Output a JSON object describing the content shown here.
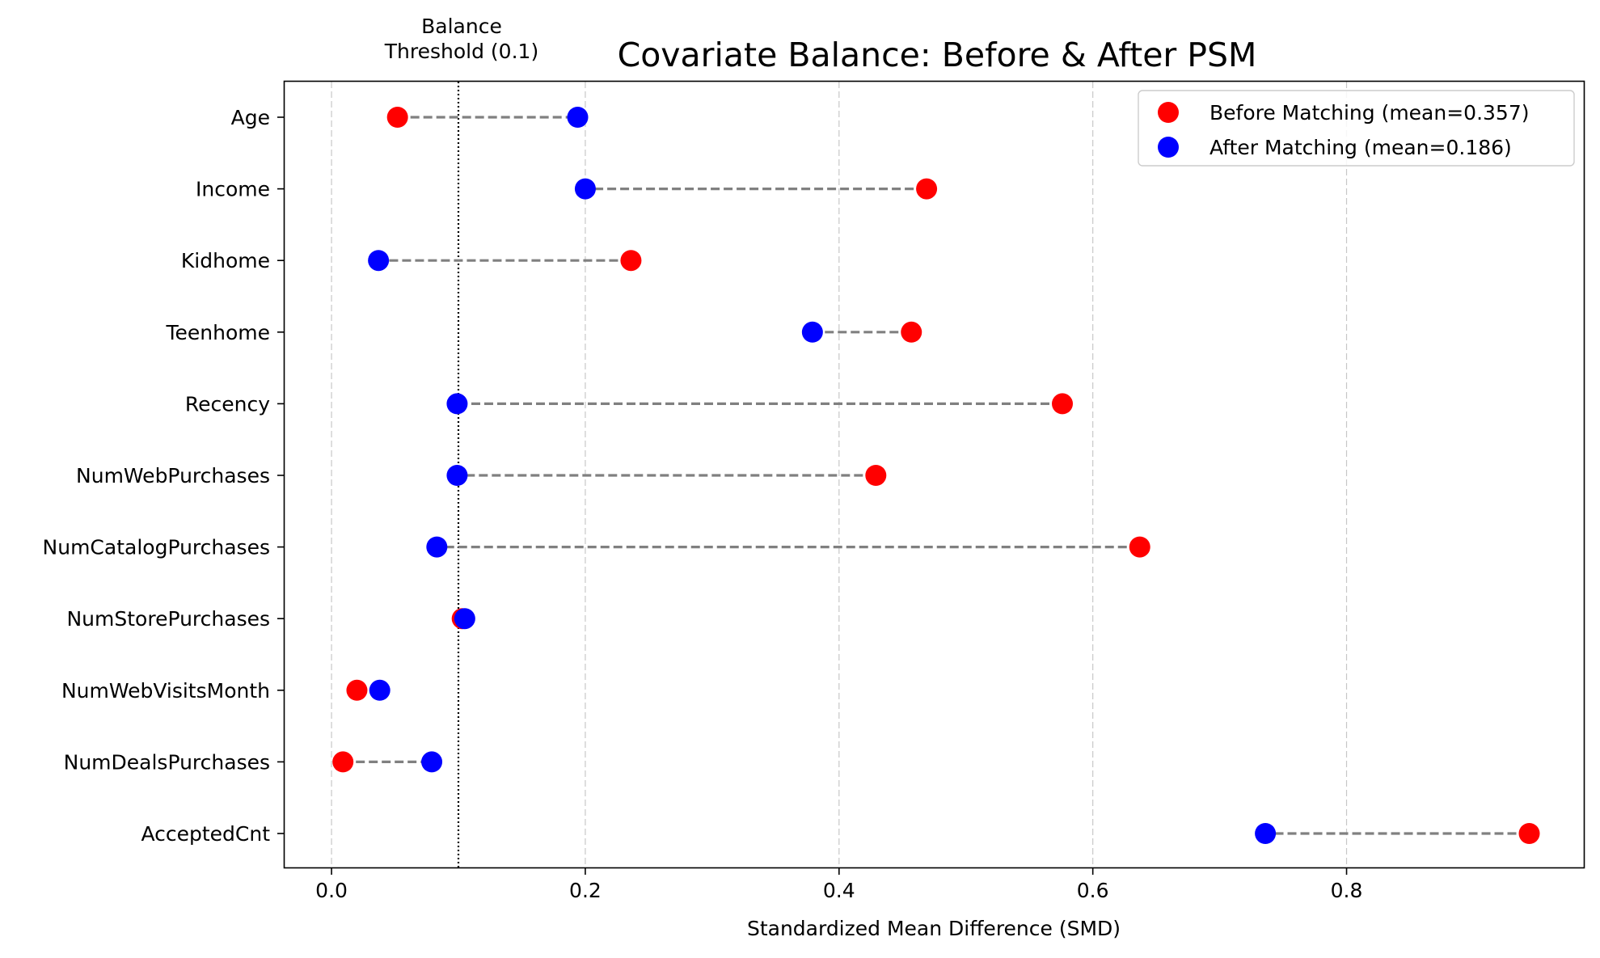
{
  "chart_data": {
    "type": "scatter",
    "title": "Covariate Balance: Before & After PSM",
    "xlabel": "Standardized Mean Difference (SMD)",
    "ylabel": "",
    "xlim": [
      -0.037,
      0.987
    ],
    "xticks": [
      0.0,
      0.2,
      0.4,
      0.6,
      0.8
    ],
    "xtick_labels": [
      "0.0",
      "0.2",
      "0.4",
      "0.6",
      "0.8"
    ],
    "grid": "x",
    "legend_position": "top-right",
    "categories": [
      "Age",
      "Income",
      "Kidhome",
      "Teenhome",
      "Recency",
      "NumWebPurchases",
      "NumCatalogPurchases",
      "NumStorePurchases",
      "NumWebVisitsMonth",
      "NumDealsPurchases",
      "AcceptedCnt"
    ],
    "series": [
      {
        "name": "Before Matching (mean=0.357)",
        "color": "#ff0000",
        "values": [
          0.052,
          0.469,
          0.236,
          0.457,
          0.576,
          0.429,
          0.637,
          0.103,
          0.02,
          0.009,
          0.944
        ]
      },
      {
        "name": "After Matching (mean=0.186)",
        "color": "#0000ff",
        "values": [
          0.194,
          0.2,
          0.037,
          0.379,
          0.099,
          0.099,
          0.083,
          0.105,
          0.038,
          0.079,
          0.736
        ]
      }
    ],
    "connector_color": "#808080",
    "threshold": {
      "value": 0.1,
      "label": "Balance\nThreshold (0.1)"
    }
  }
}
